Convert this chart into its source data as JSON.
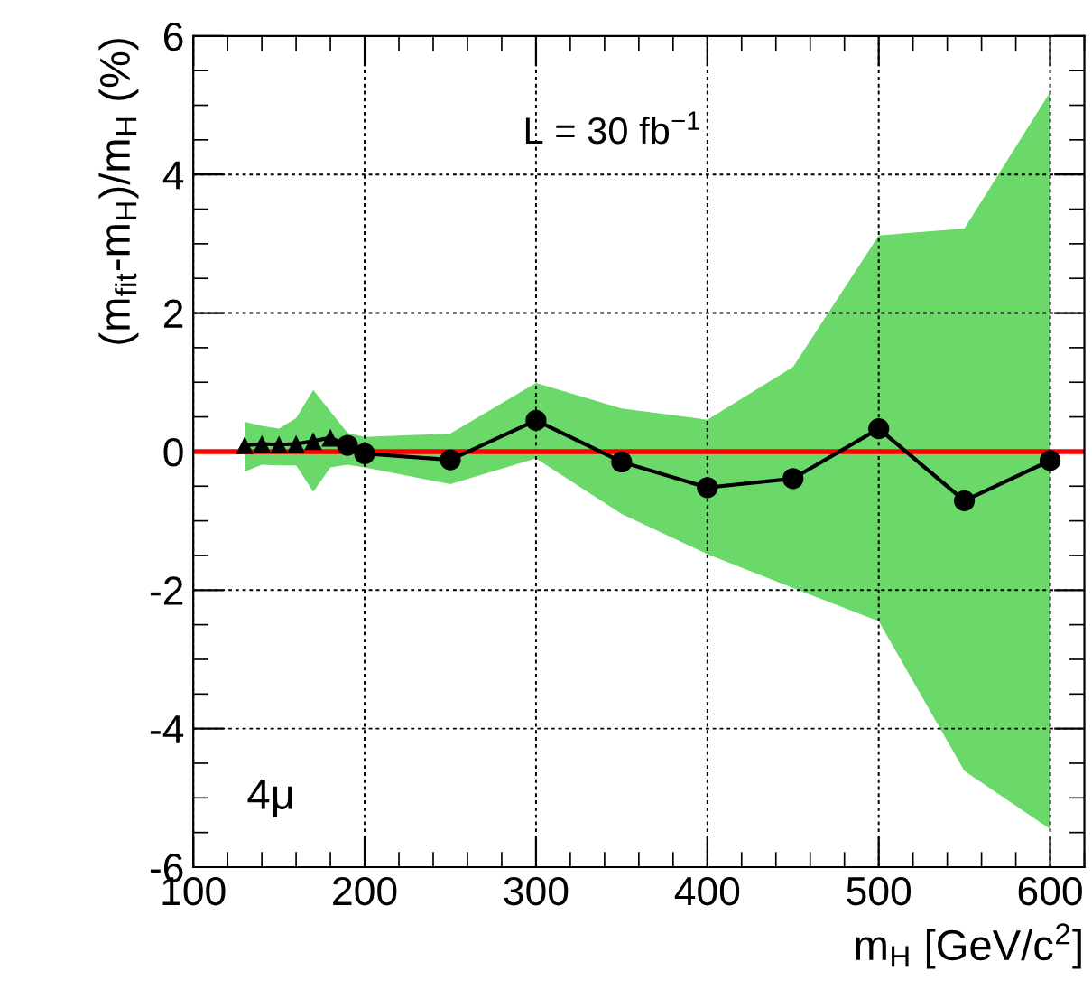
{
  "chart_data": {
    "type": "line",
    "xlabel": "m$_{H}$ [GeV/c$^{2}$]",
    "ylabel": "(m$_{fit}$-m$_{H}$)/m$_{H}$ (%)",
    "annotations": [
      "L = 30 fb$^{−1}$",
      "4μ"
    ],
    "xlim": [
      100,
      620
    ],
    "xticks": [
      100,
      200,
      300,
      400,
      500,
      600
    ],
    "ylim": [
      -6,
      6
    ],
    "yticks": [
      -6,
      -4,
      -2,
      0,
      2,
      4,
      6
    ],
    "grid": true,
    "line_style": "solid",
    "ref_lines": [
      {
        "axis": "y",
        "value": 0,
        "color": "#ff0000"
      }
    ],
    "series": [
      {
        "color": "#000000",
        "marker": "none",
        "x": [
          130,
          140,
          150,
          160,
          170,
          180,
          190,
          200,
          250,
          300,
          350,
          400,
          450,
          500,
          550,
          600
        ],
        "values": [
          0.09,
          0.11,
          0.1,
          0.11,
          0.15,
          0.2,
          0.09,
          -0.03,
          -0.12,
          0.45,
          -0.15,
          -0.52,
          -0.39,
          0.33,
          -0.71,
          -0.13
        ],
        "lower": [
          -0.29,
          -0.19,
          -0.2,
          -0.2,
          -0.58,
          -0.23,
          -0.19,
          -0.23,
          -0.47,
          -0.1,
          -0.9,
          -1.48,
          -1.97,
          -2.45,
          -4.61,
          -5.45
        ],
        "upper": [
          0.43,
          0.37,
          0.33,
          0.48,
          0.89,
          0.58,
          0.27,
          0.21,
          0.26,
          0.99,
          0.62,
          0.46,
          1.22,
          3.12,
          3.22,
          5.19
        ]
      },
      {
        "type": "scatter",
        "color": "#000000",
        "marker": "triangle",
        "x": [
          130,
          140,
          150,
          160,
          170,
          180
        ],
        "values": [
          0.09,
          0.11,
          0.1,
          0.11,
          0.15,
          0.2
        ]
      },
      {
        "type": "scatter",
        "color": "#000000",
        "marker": "circle",
        "x": [
          190,
          200,
          250,
          300,
          350,
          400,
          450,
          500,
          550,
          600
        ],
        "values": [
          0.09,
          -0.03,
          -0.12,
          0.45,
          -0.15,
          -0.52,
          -0.39,
          0.33,
          -0.71,
          -0.13
        ]
      }
    ]
  }
}
